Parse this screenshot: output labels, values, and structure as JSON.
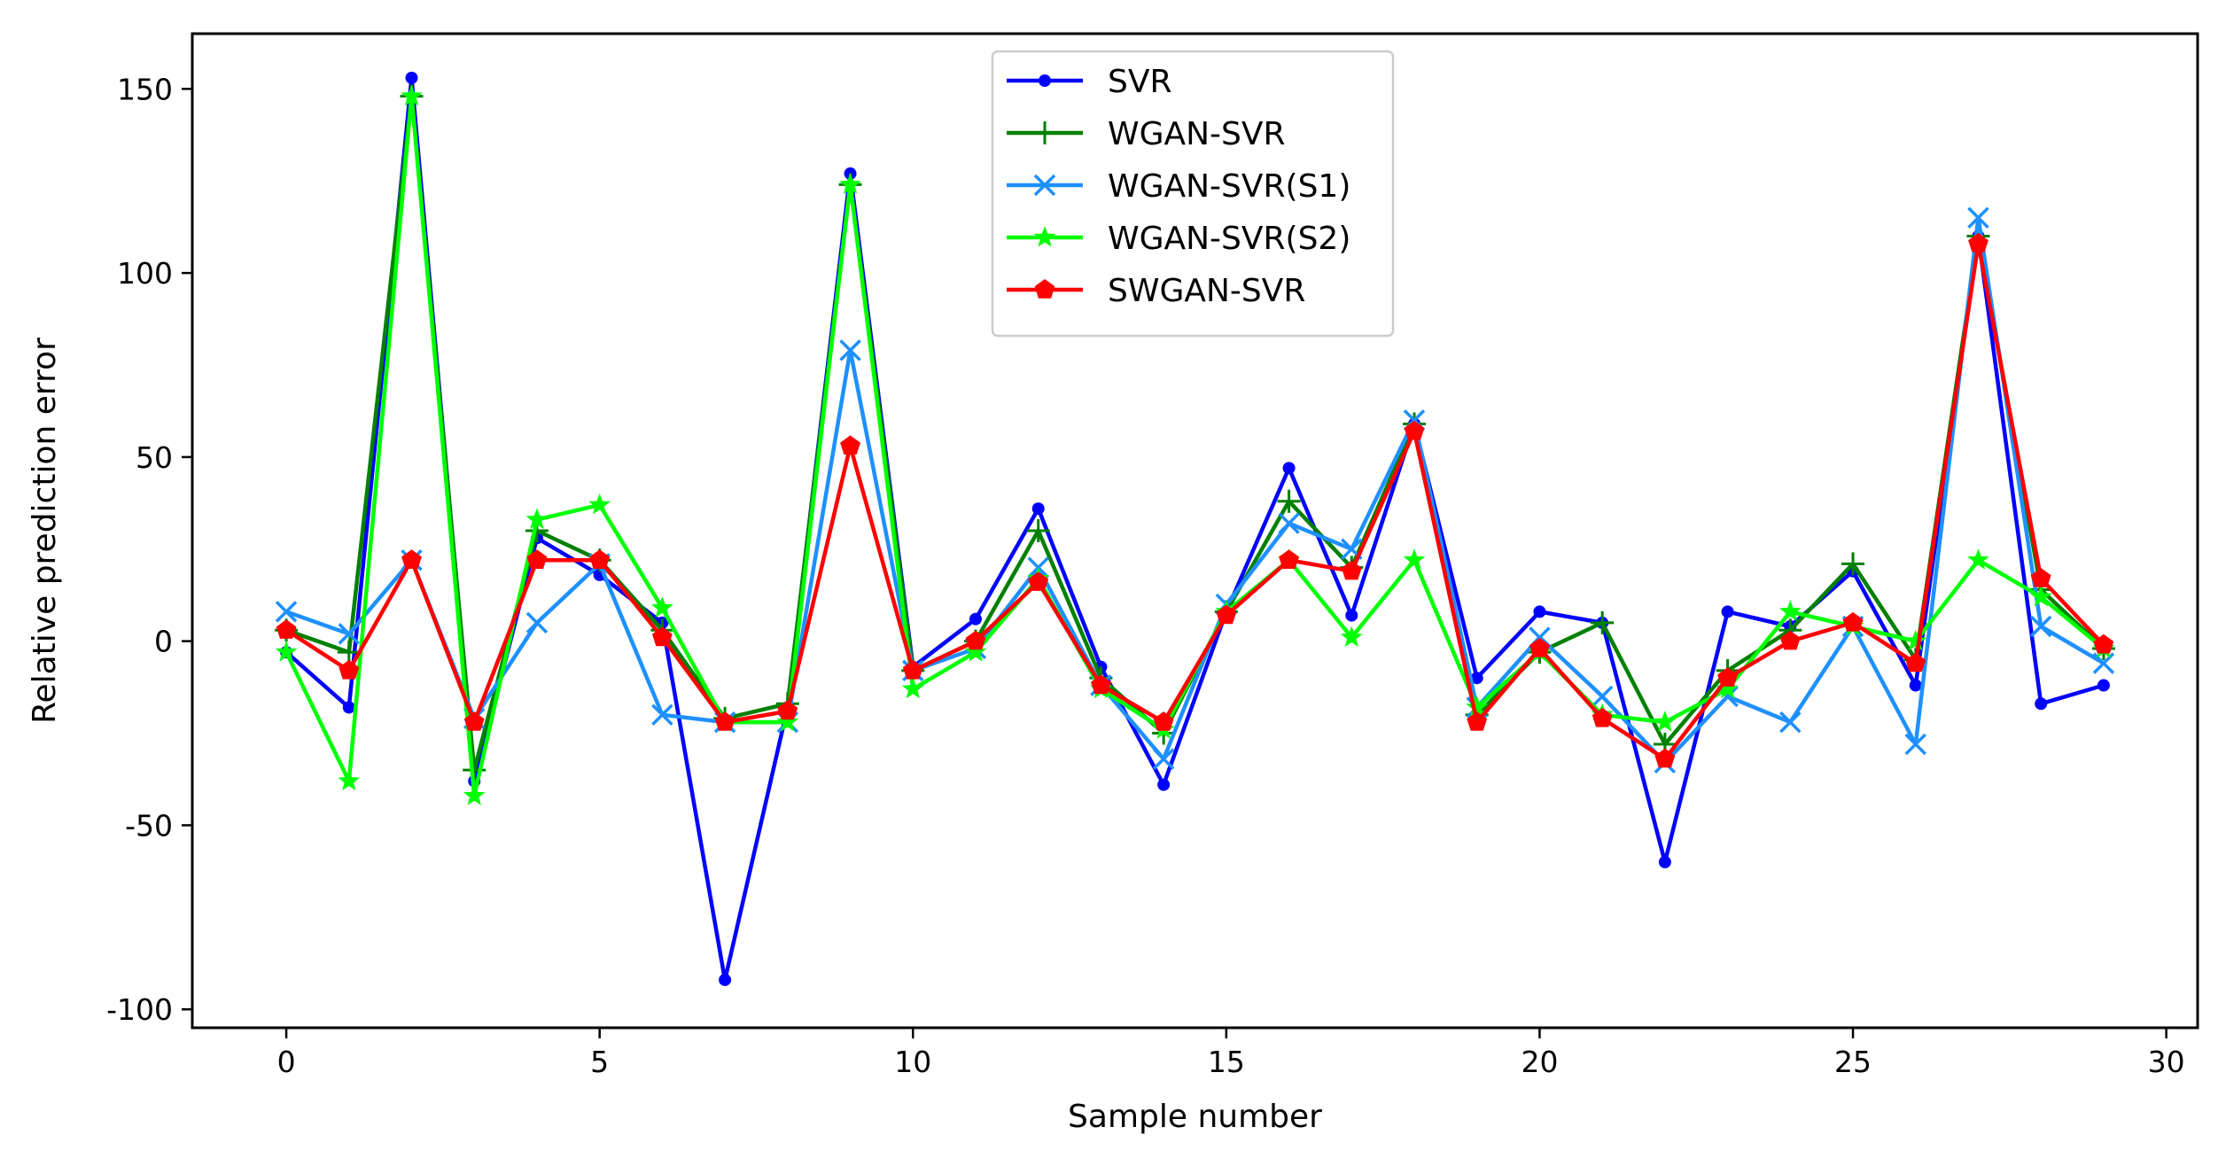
{
  "chart_data": {
    "type": "line",
    "title": "",
    "xlabel": "Sample number",
    "ylabel": "Relative prediction error",
    "xlim": [
      -1.5,
      30.5
    ],
    "ylim": [
      -105,
      165
    ],
    "xticks": [
      0,
      5,
      10,
      15,
      20,
      25,
      30
    ],
    "xtick_labels": [
      "0",
      "5",
      "10",
      "15",
      "20",
      "25",
      "30"
    ],
    "yticks": [
      150,
      100,
      50,
      0,
      -50,
      -100
    ],
    "ytick_labels": [
      "150",
      "100",
      "50",
      "0",
      "-50",
      "-100"
    ],
    "grid": false,
    "legend_position": "top-center",
    "x": [
      0,
      1,
      2,
      3,
      4,
      5,
      6,
      7,
      8,
      9,
      10,
      11,
      12,
      13,
      14,
      15,
      16,
      17,
      18,
      19,
      20,
      21,
      22,
      23,
      24,
      25,
      26,
      27,
      28,
      29
    ],
    "series": [
      {
        "name": "SVR",
        "color": "#0000ff",
        "marker": "circle",
        "values": [
          -3,
          -18,
          153,
          -38,
          28,
          18,
          5,
          -92,
          -18,
          127,
          -7,
          6,
          36,
          -7,
          -39,
          8,
          47,
          7,
          59,
          -10,
          8,
          5,
          -60,
          8,
          4,
          19,
          -12,
          110,
          -17,
          -12
        ]
      },
      {
        "name": "WGAN-SVR",
        "color": "#008000",
        "marker": "plus",
        "values": [
          3,
          -3,
          148,
          -35,
          30,
          22,
          3,
          -21,
          -17,
          124,
          -8,
          0,
          30,
          -10,
          -25,
          8,
          38,
          20,
          59,
          -20,
          -3,
          5,
          -28,
          -8,
          3,
          21,
          -5,
          110,
          14,
          -2
        ]
      },
      {
        "name": "WGAN-SVR(S1)",
        "color": "#1e90ff",
        "marker": "x",
        "values": [
          8,
          2,
          22,
          -21,
          5,
          21,
          -20,
          -22,
          -22,
          79,
          -8,
          -2,
          20,
          -12,
          -32,
          10,
          32,
          25,
          60,
          -18,
          1,
          -15,
          -33,
          -15,
          -22,
          4,
          -28,
          115,
          4,
          -6
        ]
      },
      {
        "name": "WGAN-SVR(S2)",
        "color": "#00ff00",
        "marker": "star",
        "values": [
          -3,
          -38,
          148,
          -42,
          33,
          37,
          9,
          -22,
          -22,
          124,
          -13,
          -3,
          17,
          -13,
          -24,
          8,
          22,
          1,
          22,
          -18,
          -3,
          -20,
          -22,
          -13,
          8,
          4,
          0,
          22,
          12,
          -2
        ]
      },
      {
        "name": "SWGAN-SVR",
        "color": "#ff0000",
        "marker": "pentagon",
        "values": [
          3,
          -8,
          22,
          -22,
          22,
          22,
          1,
          -22,
          -19,
          53,
          -8,
          0,
          16,
          -12,
          -22,
          7,
          22,
          19,
          57,
          -22,
          -2,
          -21,
          -32,
          -10,
          0,
          5,
          -6,
          108,
          17,
          -1
        ]
      }
    ]
  }
}
